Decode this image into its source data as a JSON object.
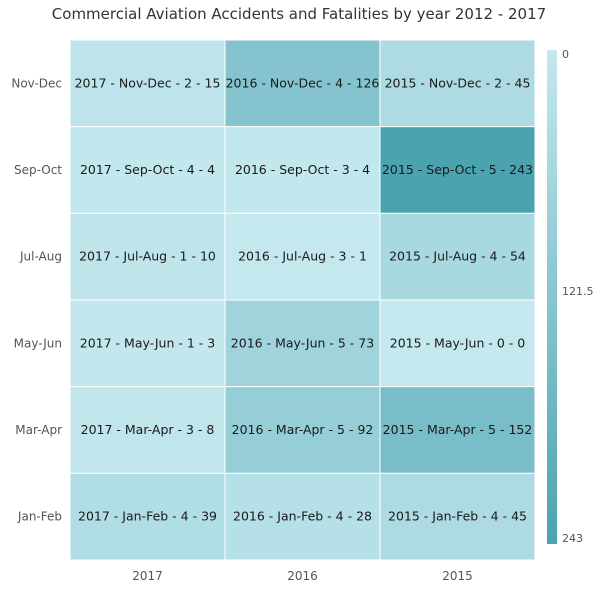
{
  "chart_data": {
    "type": "heatmap",
    "title": "Commercial Aviation Accidents and Fatalities by year 2012 - 2017",
    "x_categories": [
      "2017",
      "2016",
      "2015"
    ],
    "y_categories": [
      "Nov-Dec",
      "Sep-Oct",
      "Jul-Aug",
      "May-Jun",
      "Mar-Apr",
      "Jan-Feb"
    ],
    "cells": [
      {
        "x": "2017",
        "y": "Nov-Dec",
        "accidents": 2,
        "fatalities": 15,
        "label": "2017 - Nov-Dec - 2 - 15"
      },
      {
        "x": "2016",
        "y": "Nov-Dec",
        "accidents": 4,
        "fatalities": 126,
        "label": "2016 - Nov-Dec - 4 - 126"
      },
      {
        "x": "2015",
        "y": "Nov-Dec",
        "accidents": 2,
        "fatalities": 45,
        "label": "2015 - Nov-Dec - 2 - 45"
      },
      {
        "x": "2017",
        "y": "Sep-Oct",
        "accidents": 4,
        "fatalities": 4,
        "label": "2017 - Sep-Oct - 4 - 4"
      },
      {
        "x": "2016",
        "y": "Sep-Oct",
        "accidents": 3,
        "fatalities": 4,
        "label": "2016 - Sep-Oct - 3 - 4"
      },
      {
        "x": "2015",
        "y": "Sep-Oct",
        "accidents": 5,
        "fatalities": 243,
        "label": "2015 - Sep-Oct - 5 - 243"
      },
      {
        "x": "2017",
        "y": "Jul-Aug",
        "accidents": 1,
        "fatalities": 10,
        "label": "2017 - Jul-Aug - 1 - 10"
      },
      {
        "x": "2016",
        "y": "Jul-Aug",
        "accidents": 3,
        "fatalities": 1,
        "label": "2016 - Jul-Aug - 3 - 1"
      },
      {
        "x": "2015",
        "y": "Jul-Aug",
        "accidents": 4,
        "fatalities": 54,
        "label": "2015 - Jul-Aug - 4 - 54"
      },
      {
        "x": "2017",
        "y": "May-Jun",
        "accidents": 1,
        "fatalities": 3,
        "label": "2017 - May-Jun - 1 - 3"
      },
      {
        "x": "2016",
        "y": "May-Jun",
        "accidents": 5,
        "fatalities": 73,
        "label": "2016 - May-Jun - 5 - 73"
      },
      {
        "x": "2015",
        "y": "May-Jun",
        "accidents": 0,
        "fatalities": 0,
        "label": "2015 - May-Jun - 0 - 0"
      },
      {
        "x": "2017",
        "y": "Mar-Apr",
        "accidents": 3,
        "fatalities": 8,
        "label": "2017 - Mar-Apr - 3 - 8"
      },
      {
        "x": "2016",
        "y": "Mar-Apr",
        "accidents": 5,
        "fatalities": 92,
        "label": "2016 - Mar-Apr - 5 - 92"
      },
      {
        "x": "2015",
        "y": "Mar-Apr",
        "accidents": 5,
        "fatalities": 152,
        "label": "2015 - Mar-Apr - 5 - 152"
      },
      {
        "x": "2017",
        "y": "Jan-Feb",
        "accidents": 4,
        "fatalities": 39,
        "label": "2017 - Jan-Feb - 4 - 39"
      },
      {
        "x": "2016",
        "y": "Jan-Feb",
        "accidents": 4,
        "fatalities": 28,
        "label": "2016 - Jan-Feb - 4 - 28"
      },
      {
        "x": "2015",
        "y": "Jan-Feb",
        "accidents": 4,
        "fatalities": 45,
        "label": "2015 - Jan-Feb - 4 - 45"
      }
    ],
    "color_scale": {
      "min": 0,
      "mid": 121.5,
      "max": 243,
      "min_color": "#c4e8ee",
      "max_color": "#4ba3b0",
      "labels": [
        "0",
        "121.5",
        "243"
      ]
    },
    "legend_position": "right",
    "cell_border_color": "#ffffff",
    "label_color": "#1a1a1a",
    "axis_label_color": "#555555"
  }
}
